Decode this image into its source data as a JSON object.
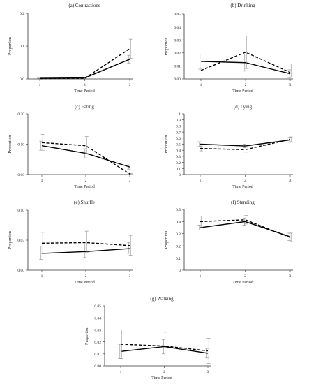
{
  "chart_data": [
    {
      "type": "line",
      "title": "(a) Contractions",
      "xlabel": "Time Period",
      "ylabel": "Proportion",
      "x": [
        1,
        2,
        3
      ],
      "x_ticks": [
        "1",
        "2",
        "3"
      ],
      "ylim": [
        0,
        0.2
      ],
      "y_ticks": [
        "0.0",
        "0.1",
        "0.2"
      ],
      "grid": false,
      "series": [
        {
          "style": "solid",
          "values": [
            0.002,
            0.003,
            0.06
          ],
          "err_low": [
            0.0015,
            0.002,
            0.048
          ],
          "err_high": [
            0.0025,
            0.004,
            0.072
          ]
        },
        {
          "style": "dashed",
          "values": [
            0.001,
            0.002,
            0.092
          ],
          "err_low": [
            0.0005,
            0.001,
            0.063
          ],
          "err_high": [
            0.0015,
            0.003,
            0.121
          ]
        }
      ]
    },
    {
      "type": "line",
      "title": "(b) Drinking",
      "xlabel": "Time Period",
      "ylabel": "Proportion",
      "x": [
        1,
        2,
        3
      ],
      "x_ticks": [
        "1",
        "2",
        "3"
      ],
      "ylim": [
        0,
        0.05
      ],
      "y_ticks": [
        "0.00",
        "0.01",
        "0.02",
        "0.03",
        "0.04",
        "0.05"
      ],
      "grid": false,
      "series": [
        {
          "style": "solid",
          "values": [
            0.0135,
            0.0125,
            0.004
          ],
          "err_low": [
            0.0075,
            0.006,
            0.001
          ],
          "err_high": [
            0.019,
            0.019,
            0.007
          ]
        },
        {
          "style": "dashed",
          "values": [
            0.0065,
            0.0205,
            0.005
          ],
          "err_low": [
            0.0045,
            0.008,
            0.0015
          ],
          "err_high": [
            0.0085,
            0.033,
            0.0115
          ]
        }
      ]
    },
    {
      "type": "line",
      "title": "(c) Eating",
      "xlabel": "Time Period",
      "ylabel": "Proportion",
      "x": [
        1,
        2,
        3
      ],
      "x_ticks": [
        "1",
        "2",
        "3"
      ],
      "ylim": [
        0,
        0.2
      ],
      "y_ticks": [
        "0.00",
        "0.10",
        "0.20"
      ],
      "grid": false,
      "series": [
        {
          "style": "solid",
          "values": [
            0.095,
            0.07,
            0.025
          ],
          "err_low": [
            0.08,
            0.055,
            0.018
          ],
          "err_high": [
            0.11,
            0.085,
            0.032
          ]
        },
        {
          "style": "dashed",
          "values": [
            0.105,
            0.095,
            0.002
          ],
          "err_low": [
            0.08,
            0.07,
            0.0
          ],
          "err_high": [
            0.132,
            0.125,
            0.004
          ]
        }
      ]
    },
    {
      "type": "line",
      "title": "(d) Lying",
      "xlabel": "Time Period",
      "ylabel": "Proportion",
      "x": [
        1,
        2,
        3
      ],
      "x_ticks": [
        "1",
        "2",
        "3"
      ],
      "ylim": [
        0,
        1
      ],
      "y_ticks": [
        "0",
        "0.1",
        "0.2",
        "0.3",
        "0.4",
        "0.5",
        "0.6",
        "0.7",
        "0.8",
        "0.9",
        "1"
      ],
      "grid": false,
      "series": [
        {
          "style": "solid",
          "values": [
            0.5,
            0.47,
            0.57
          ],
          "err_low": [
            0.46,
            0.44,
            0.53
          ],
          "err_high": [
            0.54,
            0.5,
            0.61
          ]
        },
        {
          "style": "dashed",
          "values": [
            0.43,
            0.41,
            0.58
          ],
          "err_low": [
            0.39,
            0.37,
            0.54
          ],
          "err_high": [
            0.47,
            0.45,
            0.62
          ]
        }
      ]
    },
    {
      "type": "line",
      "title": "(e) Shuffle",
      "xlabel": "Time Period",
      "ylabel": "Proportion",
      "x": [
        1,
        2,
        3
      ],
      "x_ticks": [
        "1",
        "2",
        "3"
      ],
      "ylim": [
        0,
        0.1
      ],
      "y_ticks": [
        "0.00",
        "0.05",
        "0.10"
      ],
      "grid": false,
      "series": [
        {
          "style": "solid",
          "values": [
            0.028,
            0.031,
            0.036
          ],
          "err_low": [
            0.018,
            0.021,
            0.028
          ],
          "err_high": [
            0.04,
            0.044,
            0.046
          ]
        },
        {
          "style": "dashed",
          "values": [
            0.045,
            0.046,
            0.041
          ],
          "err_low": [
            0.028,
            0.03,
            0.025
          ],
          "err_high": [
            0.063,
            0.065,
            0.058
          ]
        }
      ]
    },
    {
      "type": "line",
      "title": "(f) Standing",
      "xlabel": "Time Period",
      "ylabel": "Proportion",
      "x": [
        1,
        2,
        3
      ],
      "x_ticks": [
        "1",
        "2",
        "3"
      ],
      "ylim": [
        0,
        0.5
      ],
      "y_ticks": [
        "0",
        "0.1",
        "0.2",
        "0.3",
        "0.4",
        "0.5"
      ],
      "grid": false,
      "series": [
        {
          "style": "solid",
          "values": [
            0.35,
            0.4,
            0.275
          ],
          "err_low": [
            0.33,
            0.37,
            0.245
          ],
          "err_high": [
            0.37,
            0.43,
            0.305
          ]
        },
        {
          "style": "dashed",
          "values": [
            0.4,
            0.415,
            0.27
          ],
          "err_low": [
            0.355,
            0.38,
            0.235
          ],
          "err_high": [
            0.445,
            0.45,
            0.305
          ]
        }
      ]
    },
    {
      "type": "line",
      "title": "(g) Walking",
      "xlabel": "Time Period",
      "ylabel": "Proportion",
      "x": [
        1,
        2,
        3
      ],
      "x_ticks": [
        "1",
        "2",
        "3"
      ],
      "ylim": [
        0,
        0.05
      ],
      "y_ticks": [
        "0.00",
        "0.01",
        "0.02",
        "0.03",
        "0.04",
        "0.05"
      ],
      "grid": false,
      "series": [
        {
          "style": "solid",
          "values": [
            0.012,
            0.016,
            0.0105
          ],
          "err_low": [
            0.006,
            0.01,
            0.0065
          ],
          "err_high": [
            0.018,
            0.022,
            0.0145
          ]
        },
        {
          "style": "dashed",
          "values": [
            0.018,
            0.0165,
            0.0125
          ],
          "err_low": [
            0.006,
            0.005,
            0.002
          ],
          "err_high": [
            0.03,
            0.028,
            0.023
          ]
        }
      ]
    }
  ]
}
